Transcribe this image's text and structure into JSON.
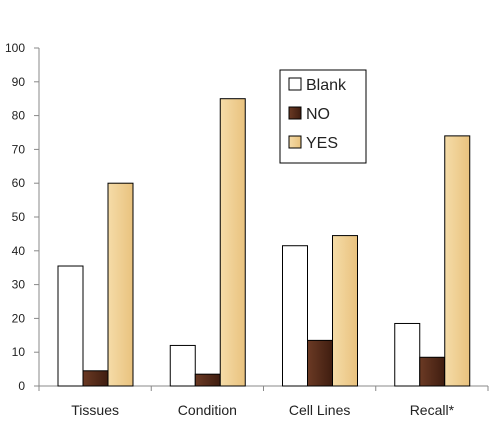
{
  "chart_data": {
    "type": "bar",
    "title": "",
    "xlabel": "",
    "ylabel": "",
    "categories": [
      "Tissues",
      "Condition",
      "Cell Lines",
      "Recall*"
    ],
    "series": [
      {
        "name": "Blank",
        "values": [
          35.5,
          12,
          41.5,
          18.5
        ],
        "color": "#ffffff"
      },
      {
        "name": "NO",
        "values": [
          4.5,
          3.5,
          13.5,
          8.5
        ],
        "color": "#5a2e1c"
      },
      {
        "name": "YES",
        "values": [
          60,
          85,
          44.5,
          74
        ],
        "color": "#f0cf95"
      }
    ],
    "ylim": [
      0,
      100
    ],
    "yticks": [
      0,
      10,
      20,
      30,
      40,
      50,
      60,
      70,
      80,
      90,
      100
    ],
    "grid": false,
    "legend_position": "top-right"
  }
}
